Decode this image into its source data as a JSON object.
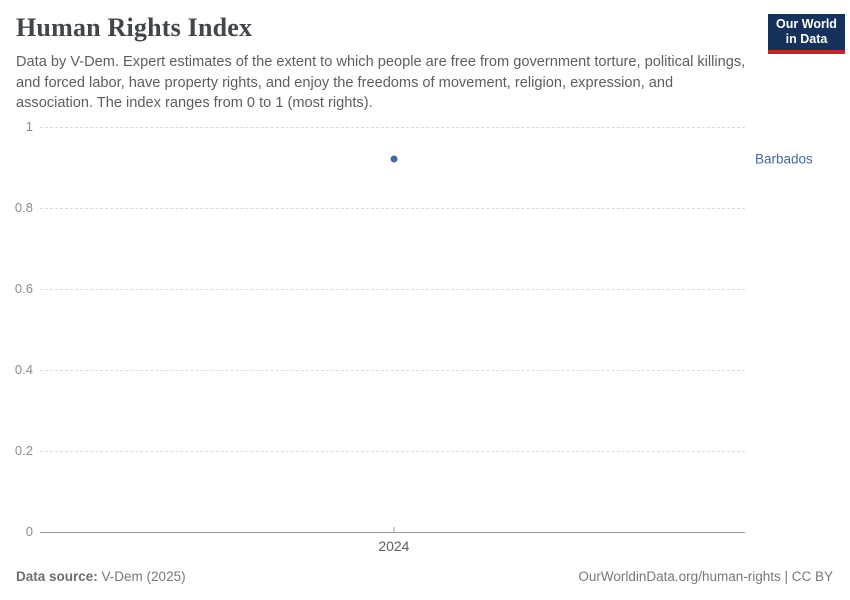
{
  "header": {
    "title": "Human Rights Index",
    "subtitle": "Data by V-Dem. Expert estimates of the extent to which people are free from government torture, political killings, and forced labor, have property rights, and enjoy the freedoms of movement, religion, expression, and association. The index ranges from 0 to 1 (most rights).",
    "logo": {
      "line1": "Our World",
      "line2": "in Data"
    }
  },
  "chart_data": {
    "type": "scatter",
    "title": "Human Rights Index",
    "x": [
      2024
    ],
    "xtick_labels": [
      "2024"
    ],
    "series": [
      {
        "name": "Barbados",
        "values": [
          0.92
        ]
      }
    ],
    "xlabel": "",
    "ylabel": "",
    "ylim": [
      0,
      1
    ],
    "yticks": [
      0,
      0.2,
      0.4,
      0.6,
      0.8,
      1
    ],
    "ytick_labels": [
      "0",
      "0.2",
      "0.4",
      "0.6",
      "0.8",
      "1"
    ],
    "grid": "horizontal-dashed",
    "legend_position": "right-of-point",
    "point_color": "#4268a5",
    "label_color": "#4268a5"
  },
  "footer": {
    "source_label": "Data source:",
    "source_value": "V-Dem (2025)",
    "right_text": "OurWorldinData.org/human-rights | CC BY"
  },
  "colors": {
    "accent_blue": "#4268a5",
    "logo_navy": "#15335a",
    "logo_red": "#c2262b",
    "gridline": "#dcdcdc",
    "axis": "#9b9b9b"
  }
}
